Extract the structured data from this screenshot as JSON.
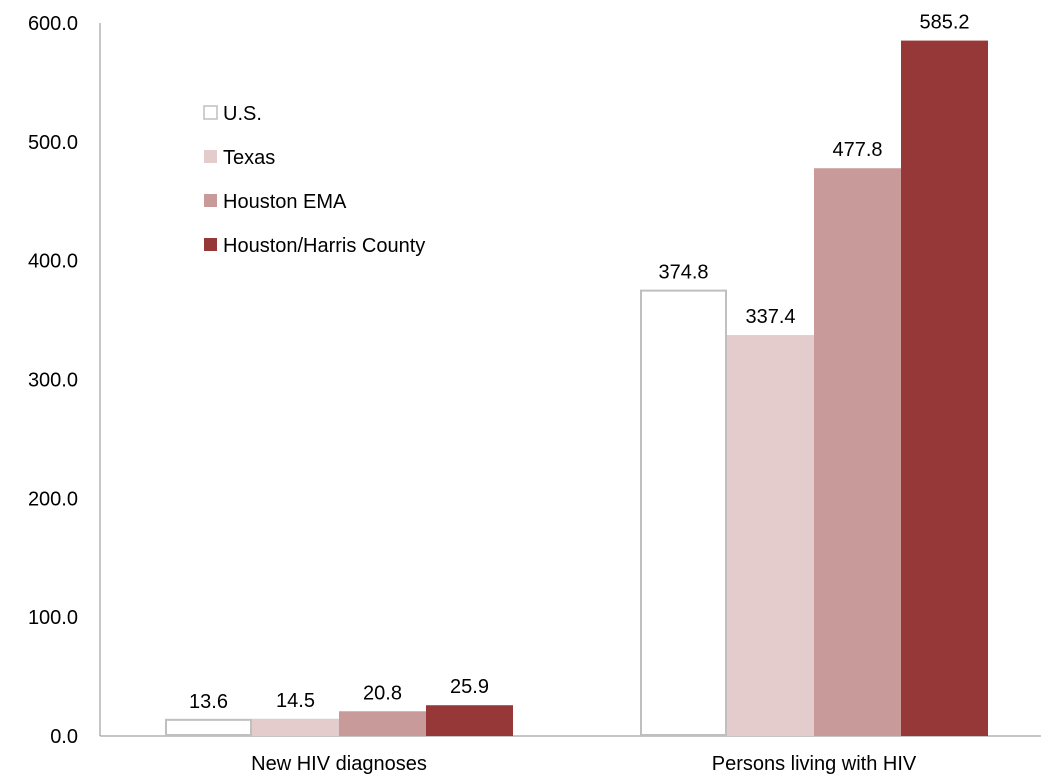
{
  "chart_data": {
    "type": "bar",
    "categories": [
      "New HIV diagnoses",
      "Persons living with HIV"
    ],
    "series": [
      {
        "name": "U.S.",
        "values": [
          13.6,
          374.8
        ],
        "color": "#ffffff",
        "stroke": "#bfbfbf"
      },
      {
        "name": "Texas",
        "values": [
          14.5,
          337.4
        ],
        "color": "#e3cccb",
        "stroke": "none"
      },
      {
        "name": "Houston EMA",
        "values": [
          20.8,
          477.8
        ],
        "color": "#c99a9a",
        "stroke": "none"
      },
      {
        "name": "Houston/Harris County",
        "values": [
          25.9,
          585.2
        ],
        "color": "#963837",
        "stroke": "none"
      }
    ],
    "data_labels": [
      [
        "13.6",
        "374.8"
      ],
      [
        "14.5",
        "337.4"
      ],
      [
        "20.8",
        "477.8"
      ],
      [
        "25.9",
        "585.2"
      ]
    ],
    "y_ticks": [
      "0.0",
      "100.0",
      "200.0",
      "300.0",
      "400.0",
      "500.0",
      "600.0"
    ],
    "ylim": [
      0,
      600
    ],
    "title": "",
    "xlabel": "",
    "ylabel": "",
    "grid": false,
    "legend_position": "top-left"
  }
}
